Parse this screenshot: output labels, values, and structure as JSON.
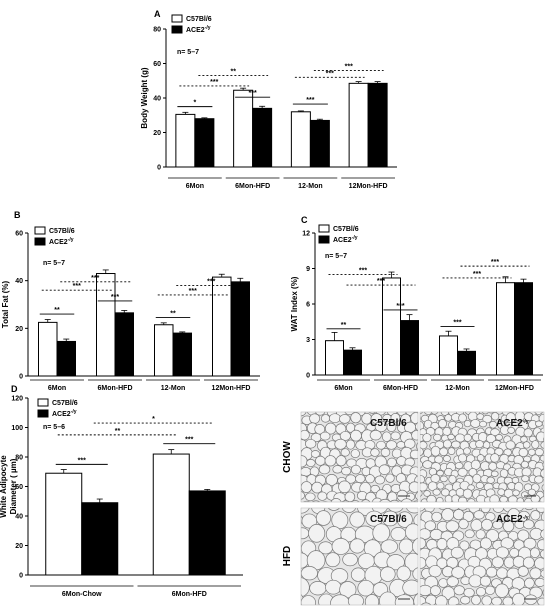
{
  "chart_data": [
    {
      "panel": "A",
      "type": "bar",
      "ylabel": "Body Weight (g)",
      "ylim": [
        0,
        80
      ],
      "yticks": [
        0,
        20,
        40,
        60,
        80
      ],
      "n_note": "n= 5–7",
      "categories": [
        "6Mon",
        "6Mon-HFD",
        "12-Mon",
        "12Mon-HFD"
      ],
      "series": [
        {
          "name": "C57Bl/6",
          "values": [
            30.5,
            44.5,
            32,
            48.5
          ],
          "errors": [
            1.2,
            1.2,
            0.5,
            1
          ]
        },
        {
          "name": "ACE2",
          "name_sup": "-/y",
          "values": [
            28,
            34,
            27,
            48.5
          ],
          "errors": [
            0.5,
            1.2,
            0.7,
            1
          ]
        }
      ],
      "sig": [
        {
          "label": "*",
          "from": [
            0,
            0
          ],
          "to": [
            0,
            1
          ],
          "y": 35
        },
        {
          "label": "***",
          "from": [
            1,
            0
          ],
          "to": [
            1,
            1
          ],
          "y": 40.5
        },
        {
          "label": "***",
          "from": [
            2,
            0
          ],
          "to": [
            2,
            1
          ],
          "y": 36.5
        },
        {
          "label": "***",
          "from": [
            0,
            0
          ],
          "to": [
            1,
            0
          ],
          "y": 47,
          "dashed": true
        },
        {
          "label": "**",
          "from": [
            0,
            1
          ],
          "to": [
            1,
            1
          ],
          "y": 53,
          "dashed": true
        },
        {
          "label": "***",
          "from": [
            2,
            0
          ],
          "to": [
            3,
            0
          ],
          "y": 52,
          "dashed": true
        },
        {
          "label": "***",
          "from": [
            2,
            1
          ],
          "to": [
            3,
            1
          ],
          "y": 56,
          "dashed": true
        }
      ]
    },
    {
      "panel": "B",
      "type": "bar",
      "ylabel": "Total Fat (%)",
      "ylim": [
        0,
        60
      ],
      "yticks": [
        0,
        20,
        40,
        60
      ],
      "n_note": "n= 5–7",
      "categories": [
        "6Mon",
        "6Mon-HFD",
        "12-Mon",
        "12Mon-HFD"
      ],
      "series": [
        {
          "name": "C57Bl/6",
          "values": [
            22.5,
            43,
            21.5,
            41.5
          ],
          "errors": [
            1.2,
            1.5,
            0.8,
            1.2
          ]
        },
        {
          "name": "ACE2",
          "name_sup": "-/y",
          "values": [
            14.5,
            26.5,
            18,
            39.5
          ],
          "errors": [
            1,
            1,
            0.5,
            1.5
          ]
        }
      ],
      "sig": [
        {
          "label": "**",
          "from": [
            0,
            0
          ],
          "to": [
            0,
            1
          ],
          "y": 26
        },
        {
          "label": "***",
          "from": [
            1,
            0
          ],
          "to": [
            1,
            1
          ],
          "y": 31.5
        },
        {
          "label": "**",
          "from": [
            2,
            0
          ],
          "to": [
            2,
            1
          ],
          "y": 24.5
        },
        {
          "label": "***",
          "from": [
            0,
            0
          ],
          "to": [
            1,
            0
          ],
          "y": 36,
          "dashed": true
        },
        {
          "label": "***",
          "from": [
            0,
            1
          ],
          "to": [
            1,
            1
          ],
          "y": 39.5,
          "dashed": true
        },
        {
          "label": "***",
          "from": [
            2,
            0
          ],
          "to": [
            3,
            0
          ],
          "y": 34,
          "dashed": true
        },
        {
          "label": "***",
          "from": [
            2,
            1
          ],
          "to": [
            3,
            1
          ],
          "y": 38,
          "dashed": true
        }
      ]
    },
    {
      "panel": "C",
      "type": "bar",
      "ylabel": "WAT Index (%)",
      "ylim": [
        0,
        12
      ],
      "yticks": [
        0,
        3,
        6,
        9,
        12
      ],
      "n_note": "n= 5–7",
      "categories": [
        "6Mon",
        "6Mon-HFD",
        "12-Mon",
        "12Mon-HFD"
      ],
      "series": [
        {
          "name": "C57Bl/6",
          "values": [
            2.9,
            8.2,
            3.3,
            7.8
          ],
          "errors": [
            0.7,
            0.5,
            0.4,
            0.5
          ]
        },
        {
          "name": "ACE2",
          "name_sup": "-/y",
          "values": [
            2.1,
            4.6,
            2,
            7.8
          ],
          "errors": [
            0.2,
            0.5,
            0.2,
            0.3
          ]
        }
      ],
      "sig": [
        {
          "label": "**",
          "from": [
            0,
            0
          ],
          "to": [
            0,
            1
          ],
          "y": 3.9
        },
        {
          "label": "***",
          "from": [
            1,
            0
          ],
          "to": [
            1,
            1
          ],
          "y": 5.5
        },
        {
          "label": "***",
          "from": [
            2,
            0
          ],
          "to": [
            2,
            1
          ],
          "y": 4.1
        },
        {
          "label": "***",
          "from": [
            0,
            0
          ],
          "to": [
            1,
            0
          ],
          "y": 8.5,
          "dashed": true
        },
        {
          "label": "***",
          "from": [
            0,
            1
          ],
          "to": [
            1,
            1
          ],
          "y": 7.6,
          "dashed": true
        },
        {
          "label": "***",
          "from": [
            2,
            0
          ],
          "to": [
            3,
            0
          ],
          "y": 8.2,
          "dashed": true
        },
        {
          "label": "***",
          "from": [
            2,
            1
          ],
          "to": [
            3,
            1
          ],
          "y": 9.2,
          "dashed": true
        }
      ]
    },
    {
      "panel": "D",
      "type": "bar",
      "ylabel": "White Adipocyte",
      "ylabel2": "Diameter ( µm)",
      "ylim": [
        0,
        120
      ],
      "yticks": [
        0,
        20,
        40,
        60,
        80,
        100,
        120
      ],
      "n_note": "n= 5–6",
      "categories": [
        "6Mon-Chow",
        "6Mon-HFD"
      ],
      "series": [
        {
          "name": "C57Bl/6",
          "values": [
            69,
            82
          ],
          "errors": [
            2.5,
            3
          ]
        },
        {
          "name": "ACE2",
          "name_sup": "-/y",
          "values": [
            49,
            57
          ],
          "errors": [
            2.5,
            1
          ]
        }
      ],
      "sig": [
        {
          "label": "***",
          "from": [
            0,
            0
          ],
          "to": [
            0,
            1
          ],
          "y": 75
        },
        {
          "label": "***",
          "from": [
            1,
            0
          ],
          "to": [
            1,
            1
          ],
          "y": 89
        },
        {
          "label": "**",
          "from": [
            0,
            0
          ],
          "to": [
            1,
            0
          ],
          "y": 95,
          "dashed": true
        },
        {
          "label": "*",
          "from": [
            0,
            1
          ],
          "to": [
            1,
            1
          ],
          "y": 103,
          "dashed": true
        }
      ]
    }
  ],
  "micrographs": {
    "row_labels": [
      "CHOW",
      "HFD"
    ],
    "tiles": [
      {
        "label": "C57Bl/6",
        "sup": "",
        "row": 0,
        "col": 0
      },
      {
        "label": "ACE2",
        "sup": "-/y",
        "row": 0,
        "col": 1
      },
      {
        "label": "C57Bl/6",
        "sup": "",
        "row": 1,
        "col": 0
      },
      {
        "label": "ACE2",
        "sup": "-/y",
        "row": 1,
        "col": 1
      }
    ]
  },
  "colors": {
    "wt": "#ffffff",
    "ko": "#000000",
    "stroke": "#000000",
    "tissue_bg": "#e6e6e6",
    "membrane": "#7a7a7a"
  }
}
